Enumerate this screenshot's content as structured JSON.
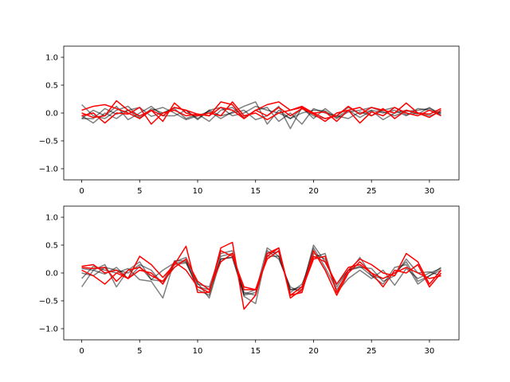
{
  "colors": {
    "gray": "#000000",
    "red": "#ff0000",
    "frame": "#000000"
  },
  "chart_data": [
    {
      "type": "line",
      "title": "",
      "xlabel": "",
      "ylabel": "",
      "xlim": [
        -1.55,
        32.55
      ],
      "ylim": [
        -1.2,
        1.2
      ],
      "xticks": [
        0,
        5,
        10,
        15,
        20,
        25,
        30
      ],
      "yticks": [
        -1.0,
        -0.5,
        0.0,
        0.5,
        1.0
      ],
      "ytick_labels": [
        "−1.0",
        "−0.5",
        "0.0",
        "0.5",
        "1.0"
      ],
      "grid": false,
      "gray_series": [
        {
          "values": [
            0.15,
            -0.05,
            -0.1,
            0.05,
            0.12,
            -0.08,
            0.04,
            0.1,
            0.0,
            -0.12,
            -0.05,
            0.03,
            -0.1,
            0.02,
            0.12,
            0.2,
            -0.2,
            0.05,
            -0.1,
            0.0,
            0.05,
            0.04,
            -0.1,
            0.02,
            0.05,
            0.1,
            0.02,
            -0.05,
            0.03,
            0.05,
            0.08,
            0.0
          ]
        },
        {
          "values": [
            -0.05,
            -0.18,
            0.0,
            -0.1,
            0.05,
            0.1,
            -0.06,
            0.0,
            0.08,
            -0.1,
            -0.02,
            -0.15,
            0.05,
            0.1,
            -0.08,
            0.05,
            0.1,
            -0.15,
            0.0,
            -0.2,
            0.08,
            0.0,
            -0.05,
            -0.1,
            0.02,
            -0.05,
            0.05,
            0.1,
            -0.03,
            0.0,
            -0.05,
            0.02
          ]
        },
        {
          "values": [
            -0.1,
            0.05,
            -0.05,
            0.12,
            -0.12,
            0.0,
            0.12,
            -0.05,
            -0.05,
            0.05,
            -0.12,
            0.05,
            -0.05,
            0.0,
            0.05,
            -0.12,
            -0.05,
            0.12,
            -0.28,
            0.1,
            -0.1,
            0.08,
            -0.08,
            0.05,
            -0.08,
            0.04,
            -0.12,
            0.0,
            0.05,
            -0.02,
            0.1,
            -0.05
          ]
        },
        {
          "values": [
            -0.1,
            -0.1,
            0.08,
            -0.02,
            0.05,
            -0.1,
            0.08,
            0.0,
            0.1,
            0.05,
            -0.1,
            0.05,
            0.1,
            -0.05,
            0.0,
            0.12,
            0.05,
            0.0,
            -0.1,
            0.08,
            -0.05,
            -0.1,
            -0.05,
            0.1,
            -0.02,
            0.05,
            0.0,
            0.05,
            -0.05,
            0.08,
            0.05,
            -0.02
          ]
        }
      ],
      "red_series": [
        {
          "values": [
            0.05,
            0.12,
            0.15,
            0.08,
            0.0,
            -0.1,
            0.05,
            -0.05,
            0.1,
            0.05,
            -0.02,
            -0.05,
            0.2,
            0.15,
            -0.1,
            0.05,
            0.15,
            0.2,
            0.05,
            0.1,
            0.0,
            -0.1,
            -0.05,
            0.12,
            -0.02,
            0.1,
            0.05,
            0.0,
            0.18,
            0.0,
            -0.08,
            0.05
          ]
        },
        {
          "values": [
            -0.05,
            0.0,
            -0.18,
            0.0,
            -0.02,
            0.1,
            -0.2,
            0.0,
            0.05,
            -0.05,
            -0.02,
            -0.05,
            0.1,
            0.05,
            -0.1,
            0.05,
            -0.05,
            0.1,
            -0.05,
            0.08,
            -0.02,
            -0.15,
            0.0,
            0.05,
            -0.18,
            0.02,
            -0.05,
            0.1,
            0.0,
            -0.05,
            0.05,
            -0.05
          ]
        },
        {
          "values": [
            0.0,
            -0.08,
            -0.05,
            0.22,
            0.05,
            -0.05,
            0.05,
            -0.15,
            0.18,
            0.0,
            -0.05,
            0.0,
            -0.05,
            0.2,
            -0.05,
            0.0,
            -0.12,
            0.0,
            0.05,
            0.12,
            0.0,
            0.02,
            -0.15,
            0.05,
            0.1,
            -0.05,
            0.08,
            -0.1,
            0.05,
            0.0,
            -0.02,
            0.08
          ]
        }
      ]
    },
    {
      "type": "line",
      "title": "",
      "xlabel": "",
      "ylabel": "",
      "xlim": [
        -1.55,
        32.55
      ],
      "ylim": [
        -1.2,
        1.2
      ],
      "xticks": [
        0,
        5,
        10,
        15,
        20,
        25,
        30
      ],
      "yticks": [
        -1.0,
        -0.5,
        0.0,
        0.5,
        1.0
      ],
      "ytick_labels": [
        "−1.0",
        "−0.5",
        "0.0",
        "0.5",
        "1.0"
      ],
      "grid": false,
      "gray_series": [
        {
          "values": [
            -0.25,
            0.05,
            0.15,
            -0.25,
            0.05,
            0.2,
            -0.12,
            -0.15,
            0.2,
            0.28,
            -0.18,
            -0.45,
            0.25,
            0.28,
            -0.4,
            -0.35,
            0.45,
            0.3,
            -0.3,
            -0.25,
            0.45,
            0.1,
            -0.3,
            0.0,
            0.28,
            -0.05,
            -0.2,
            0.1,
            0.15,
            -0.2,
            -0.05,
            0.1
          ]
        },
        {
          "values": [
            0.08,
            0.05,
            -0.02,
            0.1,
            -0.1,
            0.12,
            -0.12,
            0.05,
            0.18,
            0.2,
            -0.2,
            -0.25,
            0.35,
            0.4,
            -0.42,
            -0.55,
            0.4,
            0.25,
            -0.25,
            -0.35,
            0.35,
            0.25,
            -0.25,
            0.05,
            0.1,
            0.08,
            -0.15,
            -0.05,
            0.25,
            0.0,
            0.02,
            -0.05
          ]
        },
        {
          "values": [
            -0.1,
            0.12,
            0.05,
            0.0,
            0.08,
            -0.12,
            -0.15,
            -0.45,
            0.22,
            0.22,
            -0.3,
            -0.4,
            0.3,
            0.35,
            -0.35,
            -0.4,
            0.35,
            0.38,
            -0.35,
            -0.2,
            0.28,
            0.35,
            -0.35,
            -0.1,
            0.05,
            -0.1,
            0.05,
            -0.22,
            0.08,
            -0.1,
            0.0,
            0.08
          ]
        },
        {
          "values": [
            0.0,
            -0.05,
            0.1,
            0.05,
            0.0,
            0.15,
            0.05,
            -0.2,
            0.15,
            0.18,
            -0.25,
            -0.3,
            0.25,
            0.28,
            -0.38,
            -0.3,
            0.3,
            0.3,
            -0.3,
            -0.3,
            0.5,
            0.2,
            -0.2,
            0.05,
            0.12,
            -0.05,
            -0.1,
            0.0,
            0.2,
            -0.15,
            -0.05,
            0.05
          ]
        }
      ],
      "red_series": [
        {
          "values": [
            0.12,
            0.15,
            0.0,
            0.05,
            -0.1,
            0.3,
            0.15,
            -0.08,
            0.15,
            0.48,
            -0.35,
            -0.35,
            0.45,
            0.55,
            -0.65,
            -0.4,
            0.35,
            0.45,
            -0.45,
            -0.3,
            0.25,
            0.3,
            -0.35,
            0.05,
            0.25,
            0.15,
            0.0,
            -0.05,
            0.35,
            0.2,
            -0.2,
            0.05
          ]
        },
        {
          "values": [
            0.05,
            -0.05,
            -0.2,
            0.0,
            -0.1,
            0.05,
            0.0,
            -0.2,
            0.2,
            0.05,
            -0.25,
            -0.35,
            0.4,
            0.3,
            -0.25,
            -0.3,
            0.3,
            0.45,
            -0.4,
            -0.35,
            0.4,
            0.05,
            -0.4,
            0.0,
            0.2,
            0.0,
            -0.25,
            0.05,
            0.0,
            0.15,
            -0.25,
            0.0
          ]
        },
        {
          "values": [
            0.1,
            0.08,
            0.1,
            -0.15,
            0.05,
            0.1,
            -0.05,
            -0.15,
            0.1,
            0.25,
            -0.15,
            -0.3,
            0.2,
            0.35,
            -0.3,
            -0.3,
            0.25,
            0.4,
            -0.4,
            -0.25,
            0.3,
            0.2,
            -0.2,
            0.1,
            0.15,
            0.0,
            -0.1,
            0.0,
            0.1,
            0.0,
            -0.1,
            -0.05
          ]
        }
      ]
    }
  ]
}
